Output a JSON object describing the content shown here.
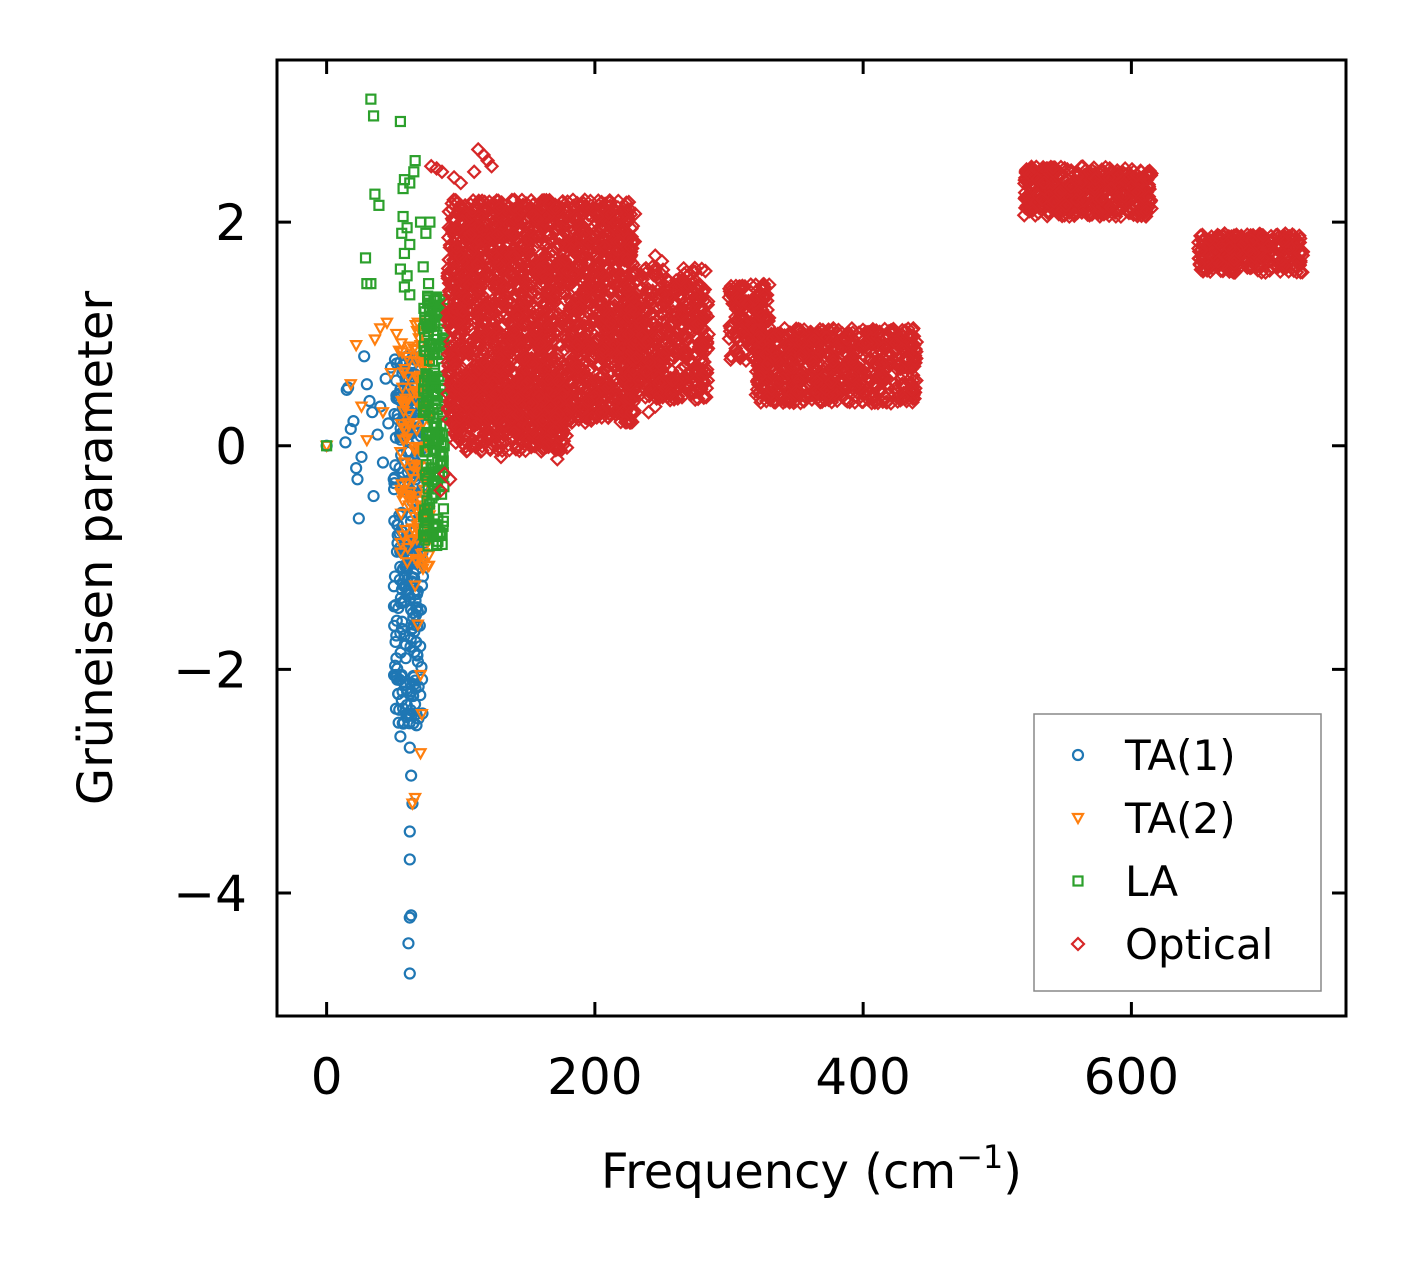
{
  "chart_data": {
    "type": "scatter",
    "title": "",
    "xlabel": "Frequency (cm",
    "xlabel_sup": "−1",
    "xlabel_close": ")",
    "ylabel": "Grüneisen parameter",
    "xlim": [
      -37,
      760
    ],
    "ylim": [
      -5.1,
      3.45
    ],
    "xticks": [
      0,
      200,
      400,
      600
    ],
    "xtick_labels": [
      "0",
      "200",
      "400",
      "600"
    ],
    "yticks": [
      2,
      0,
      -2,
      -4
    ],
    "ytick_labels": [
      "2",
      "0",
      "−2",
      "−4"
    ],
    "grid": false,
    "legend_position": "lower-right",
    "series": [
      {
        "name": "TA(1)",
        "marker": "circle",
        "color": "#1f77b4",
        "points": [
          [
            0,
            0.0
          ],
          [
            15,
            0.5
          ],
          [
            16,
            0.52
          ],
          [
            14,
            0.03
          ],
          [
            18,
            0.15
          ],
          [
            20,
            0.22
          ],
          [
            22,
            -0.2
          ],
          [
            23,
            -0.3
          ],
          [
            24,
            -0.65
          ],
          [
            26,
            -0.1
          ],
          [
            28,
            0.8
          ],
          [
            30,
            0.55
          ],
          [
            32,
            0.4
          ],
          [
            34,
            0.3
          ],
          [
            35,
            -0.45
          ],
          [
            38,
            0.1
          ],
          [
            40,
            0.35
          ],
          [
            42,
            -0.15
          ],
          [
            44,
            0.6
          ],
          [
            46,
            0.2
          ],
          [
            48,
            0.7
          ],
          [
            50,
            -0.3
          ],
          [
            52,
            0.45
          ],
          [
            53,
            -0.8
          ],
          [
            55,
            0.75
          ],
          [
            56,
            -0.6
          ],
          [
            57,
            -1.1
          ],
          [
            58,
            -1.4
          ],
          [
            59,
            -1.9
          ],
          [
            60,
            -2.2
          ],
          [
            61,
            -2.4
          ],
          [
            62,
            -2.7
          ],
          [
            63,
            -2.95
          ],
          [
            64,
            -3.2
          ],
          [
            62,
            -3.45
          ],
          [
            62,
            -3.7
          ],
          [
            63,
            -4.2
          ],
          [
            62,
            -4.22
          ],
          [
            61,
            -4.45
          ],
          [
            62,
            -4.72
          ],
          [
            55,
            -2.6
          ],
          [
            57,
            -2.35
          ],
          [
            58,
            -1.7
          ],
          [
            60,
            -1.2
          ],
          [
            62,
            -0.9
          ],
          [
            64,
            -0.5
          ],
          [
            65,
            -1.6
          ],
          [
            66,
            -2.1
          ],
          [
            67,
            -2.5
          ],
          [
            68,
            -1.3
          ],
          [
            58,
            0.5
          ],
          [
            60,
            0.8
          ],
          [
            62,
            0.25
          ],
          [
            64,
            0.65
          ],
          [
            66,
            0.15
          ],
          [
            68,
            0.45
          ],
          [
            70,
            0.7
          ],
          [
            66,
            -0.2
          ],
          [
            62,
            -0.05
          ],
          [
            60,
            0.05
          ]
        ],
        "clusters": [
          {
            "x": [
              50,
              72
            ],
            "y": [
              -2.5,
              0.8
            ],
            "n": 260
          }
        ]
      },
      {
        "name": "TA(2)",
        "marker": "triangle-down",
        "color": "#ff7f0e",
        "points": [
          [
            0,
            0.0
          ],
          [
            18,
            0.55
          ],
          [
            22,
            0.9
          ],
          [
            26,
            0.35
          ],
          [
            30,
            0.05
          ],
          [
            36,
            0.95
          ],
          [
            40,
            1.05
          ],
          [
            42,
            0.3
          ],
          [
            45,
            1.1
          ],
          [
            48,
            0.65
          ],
          [
            52,
            1.0
          ],
          [
            54,
            0.85
          ],
          [
            56,
            0.4
          ],
          [
            58,
            -0.15
          ],
          [
            62,
            -0.45
          ],
          [
            64,
            -0.85
          ],
          [
            66,
            -1.25
          ],
          [
            68,
            -1.6
          ],
          [
            70,
            -2.05
          ],
          [
            71,
            -2.4
          ],
          [
            70,
            -2.75
          ],
          [
            66,
            -3.15
          ],
          [
            64,
            -3.2
          ],
          [
            72,
            -1.05
          ],
          [
            74,
            -0.7
          ],
          [
            72,
            0.3
          ],
          [
            70,
            0.9
          ],
          [
            68,
            1.1
          ],
          [
            75,
            0.55
          ],
          [
            76,
            -0.3
          ]
        ],
        "clusters": [
          {
            "x": [
              55,
              78
            ],
            "y": [
              -1.1,
              1.1
            ],
            "n": 140
          }
        ]
      },
      {
        "name": "LA",
        "marker": "square",
        "color": "#2ca02c",
        "points": [
          [
            0,
            0.0
          ],
          [
            33,
            3.1
          ],
          [
            35,
            2.95
          ],
          [
            55,
            2.9
          ],
          [
            66,
            2.55
          ],
          [
            65,
            2.45
          ],
          [
            62,
            2.35
          ],
          [
            58,
            2.38
          ],
          [
            57,
            2.3
          ],
          [
            36,
            2.25
          ],
          [
            39,
            2.15
          ],
          [
            57,
            2.05
          ],
          [
            60,
            1.95
          ],
          [
            56,
            1.9
          ],
          [
            62,
            1.8
          ],
          [
            58,
            1.72
          ],
          [
            29,
            1.68
          ],
          [
            55,
            1.58
          ],
          [
            60,
            1.52
          ],
          [
            30,
            1.45
          ],
          [
            33,
            1.45
          ],
          [
            58,
            1.42
          ],
          [
            62,
            1.35
          ],
          [
            70,
            2.0
          ],
          [
            77,
            2.0
          ],
          [
            74,
            1.9
          ],
          [
            72,
            1.6
          ],
          [
            76,
            1.45
          ],
          [
            80,
            1.3
          ],
          [
            84,
            1.2
          ]
        ],
        "clusters": [
          {
            "x": [
              72,
              88
            ],
            "y": [
              -0.9,
              1.4
            ],
            "n": 200
          }
        ]
      },
      {
        "name": "Optical",
        "marker": "diamond",
        "color": "#d62728",
        "points": [
          [
            78,
            2.5
          ],
          [
            82,
            2.48
          ],
          [
            86,
            2.45
          ],
          [
            95,
            2.4
          ],
          [
            100,
            2.35
          ],
          [
            110,
            2.45
          ],
          [
            113,
            2.65
          ],
          [
            117,
            2.6
          ],
          [
            120,
            2.55
          ],
          [
            123,
            2.5
          ],
          [
            140,
            2.2
          ],
          [
            145,
            2.1
          ],
          [
            175,
            1.95
          ],
          [
            198,
            2.12
          ],
          [
            202,
            2.05
          ],
          [
            210,
            1.9
          ],
          [
            245,
            1.7
          ],
          [
            250,
            1.65
          ],
          [
            115,
            -0.05
          ],
          [
            130,
            -0.1
          ],
          [
            150,
            0.05
          ],
          [
            160,
            -0.05
          ],
          [
            172,
            -0.12
          ],
          [
            195,
            0.4
          ],
          [
            205,
            0.3
          ],
          [
            240,
            0.3
          ],
          [
            245,
            0.35
          ],
          [
            88,
            -0.25
          ],
          [
            92,
            -0.3
          ],
          [
            85,
            -0.4
          ]
        ],
        "clusters": [
          {
            "x": [
              90,
              230
            ],
            "y": [
              0.2,
              2.2
            ],
            "n": 2200
          },
          {
            "x": [
              95,
              180
            ],
            "y": [
              -0.05,
              0.6
            ],
            "n": 400
          },
          {
            "x": [
              225,
              285
            ],
            "y": [
              0.4,
              1.6
            ],
            "n": 500
          },
          {
            "x": [
              300,
              330
            ],
            "y": [
              0.75,
              1.45
            ],
            "n": 160
          },
          {
            "x": [
              320,
              440
            ],
            "y": [
              0.38,
              1.05
            ],
            "n": 700
          },
          {
            "x": [
              520,
              615
            ],
            "y": [
              2.05,
              2.5
            ],
            "n": 500
          },
          {
            "x": [
              650,
              728
            ],
            "y": [
              1.55,
              1.9
            ],
            "n": 300
          }
        ]
      }
    ]
  }
}
